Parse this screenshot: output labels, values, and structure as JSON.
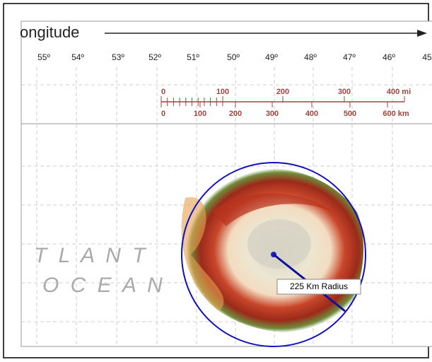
{
  "axis": {
    "title": "ongitude",
    "ticks": [
      "55º",
      "54º",
      "53º",
      "52º",
      "51º",
      "50º",
      "49º",
      "48º",
      "47º",
      "46º",
      "45"
    ]
  },
  "scale": {
    "miles": [
      "0",
      "100",
      "200",
      "300",
      "400 mi"
    ],
    "km": [
      "0",
      "100",
      "200",
      "300",
      "400",
      "500",
      "600 km"
    ]
  },
  "ocean": [
    "T L A N T",
    "O C E A N"
  ],
  "radius_label": "225 Km Radius"
}
